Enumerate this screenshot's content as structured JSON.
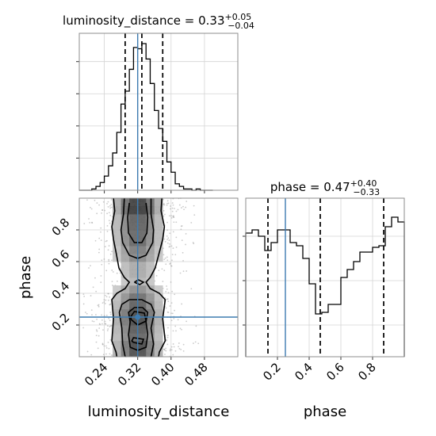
{
  "chart_data": [
    {
      "type": "histogram",
      "panel": "luminosity_distance marginal",
      "title": {
        "main": "luminosity_distance = 0.33",
        "sup": "+0.05",
        "sub": "−0.04"
      },
      "param": "luminosity_distance",
      "xlim": [
        0.18,
        0.56
      ],
      "bins": [
        0.18,
        0.19,
        0.2,
        0.21,
        0.22,
        0.23,
        0.24,
        0.25,
        0.26,
        0.27,
        0.28,
        0.29,
        0.3,
        0.31,
        0.32,
        0.33,
        0.34,
        0.35,
        0.36,
        0.37,
        0.38,
        0.39,
        0.4,
        0.41,
        0.42,
        0.43,
        0.44,
        0.45,
        0.46,
        0.47,
        0.48,
        0.49,
        0.5
      ],
      "counts": [
        0,
        0,
        0,
        1,
        3,
        6,
        11,
        19,
        29,
        45,
        67,
        77,
        94,
        111,
        110,
        114,
        102,
        83,
        62,
        48,
        38,
        22,
        14,
        5,
        3,
        1,
        1,
        0,
        1,
        0,
        0,
        0
      ],
      "ylim": [
        0,
        122
      ],
      "quantile_lines": [
        0.29,
        0.33,
        0.38
      ],
      "truth": 0.32
    },
    {
      "type": "scatter",
      "panel": "2D posterior density (contours)",
      "xlabel": "luminosity_distance",
      "ylabel": "phase",
      "xlim": [
        0.18,
        0.56
      ],
      "ylim": [
        0.0,
        1.0
      ],
      "xticks": [
        "0.24",
        "0.32",
        "0.40",
        "0.48"
      ],
      "yticks": [
        "0.2",
        "0.4",
        "0.6",
        "0.8"
      ],
      "truth": {
        "x": 0.32,
        "y": 0.25
      },
      "density_center_x": 0.32,
      "density_sigma_x": 0.035
    },
    {
      "type": "histogram",
      "panel": "phase marginal",
      "title": {
        "main": "phase = 0.47",
        "sup": "+0.40",
        "sub": "−0.33"
      },
      "param": "phase",
      "xlabel": "phase",
      "xlim": [
        0.0,
        1.0
      ],
      "bins": [
        0.0,
        0.04,
        0.08,
        0.12,
        0.16,
        0.2,
        0.24,
        0.28,
        0.32,
        0.36,
        0.4,
        0.44,
        0.48,
        0.52,
        0.56,
        0.6,
        0.64,
        0.68,
        0.72,
        0.76,
        0.8,
        0.84,
        0.88,
        0.92,
        0.96,
        1.0
      ],
      "counts": [
        78,
        80,
        76,
        67,
        72,
        80,
        80,
        72,
        70,
        62,
        46,
        27,
        28,
        33,
        33,
        50,
        55,
        60,
        66,
        66,
        69,
        70,
        82,
        88,
        85
      ],
      "ylim": [
        0,
        100
      ],
      "xticks": [
        "0.2",
        "0.4",
        "0.6",
        "0.8"
      ],
      "quantile_lines": [
        0.14,
        0.47,
        0.87
      ],
      "truth": 0.25
    }
  ]
}
